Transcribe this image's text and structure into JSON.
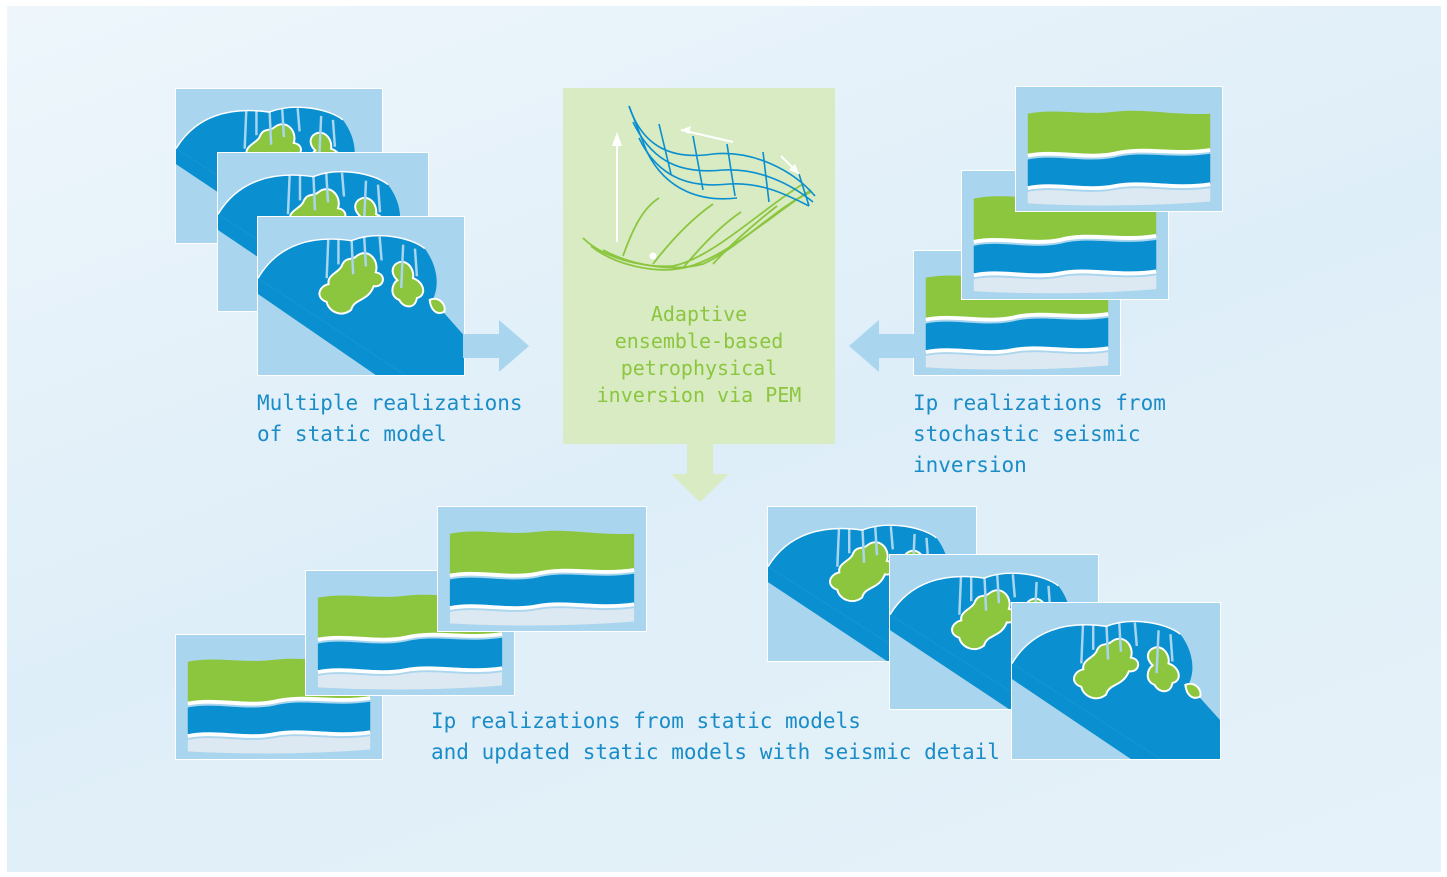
{
  "labels": {
    "static_model": [
      "Multiple realizations",
      "of static model"
    ],
    "center": [
      "Adaptive",
      "ensemble-based",
      "petrophysical",
      "inversion via PEM"
    ],
    "seismic": [
      "Ip realizations from",
      "stochastic seismic",
      "inversion"
    ],
    "bottom": [
      "Ip realizations from static models",
      "and updated static models with seismic detail"
    ]
  },
  "colors": {
    "panel": "#a9d5ee",
    "blue": "#0a8fd0",
    "green": "#8cc63f",
    "pale": "#d8ebc3",
    "arrow": "#a9d5ee",
    "text_blue": "#1a8cc7"
  },
  "icons": [
    "reservoir-map-icon",
    "seismic-section-icon",
    "optimization-surface-icon"
  ]
}
